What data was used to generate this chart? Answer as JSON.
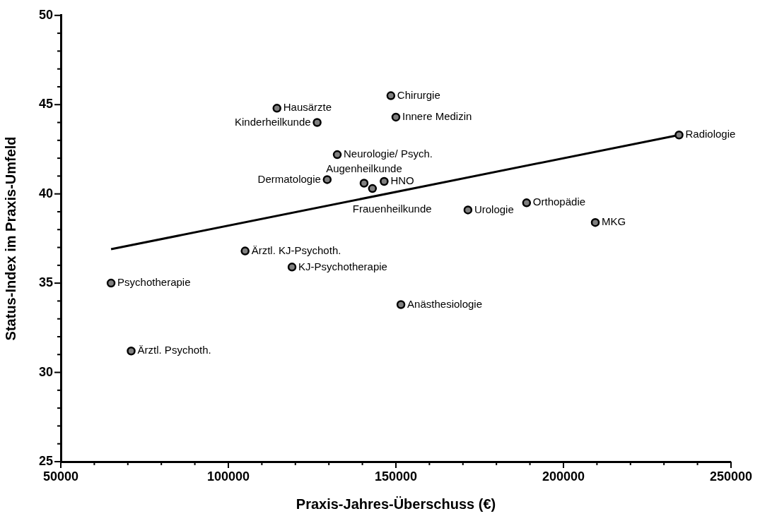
{
  "chart_data": {
    "type": "scatter",
    "xlabel": "Praxis-Jahres-Überschuss (€)",
    "ylabel": "Status-Index im Praxis-Umfeld",
    "marker": "circle",
    "grid": false,
    "xlim": [
      50000,
      250000
    ],
    "xticks": [
      50000,
      {
        "value": 60000,
        "label": null
      },
      {
        "value": 70000,
        "label": null
      },
      {
        "value": 80000,
        "label": null
      },
      {
        "value": 90000,
        "label": null
      },
      100000,
      {
        "value": 110000,
        "label": null
      },
      {
        "value": 120000,
        "label": null
      },
      {
        "value": 130000,
        "label": null
      },
      {
        "value": 140000,
        "label": null
      },
      150000,
      {
        "value": 160000,
        "label": null
      },
      {
        "value": 170000,
        "label": null
      },
      {
        "value": 180000,
        "label": null
      },
      {
        "value": 190000,
        "label": null
      },
      200000,
      {
        "value": 210000,
        "label": null
      },
      {
        "value": 220000,
        "label": null
      },
      {
        "value": 230000,
        "label": null
      },
      {
        "value": 240000,
        "label": null
      },
      250000
    ],
    "ylim": [
      25,
      50
    ],
    "yticks": [
      25,
      {
        "value": 26,
        "label": null
      },
      {
        "value": 27,
        "label": null
      },
      {
        "value": 28,
        "label": null
      },
      {
        "value": 29,
        "label": null
      },
      30,
      {
        "value": 31,
        "label": null
      },
      {
        "value": 32,
        "label": null
      },
      {
        "value": 33,
        "label": null
      },
      {
        "value": 34,
        "label": null
      },
      35,
      {
        "value": 36,
        "label": null
      },
      {
        "value": 37,
        "label": null
      },
      {
        "value": 38,
        "label": null
      },
      {
        "value": 39,
        "label": null
      },
      40,
      {
        "value": 41,
        "label": null
      },
      {
        "value": 42,
        "label": null
      },
      {
        "value": 43,
        "label": null
      },
      {
        "value": 44,
        "label": null
      },
      45,
      {
        "value": 46,
        "label": null
      },
      {
        "value": 47,
        "label": null
      },
      {
        "value": 48,
        "label": null
      },
      {
        "value": 49,
        "label": null
      },
      50
    ],
    "x": [
      114500,
      126500,
      148500,
      150000,
      132500,
      129500,
      140500,
      146500,
      143000,
      171500,
      189000,
      209500,
      234500,
      105000,
      119000,
      151500,
      65000,
      71000
    ],
    "series": [
      {
        "type": "scatter",
        "color": "#808080",
        "values": [
          44.8,
          44.0,
          45.5,
          44.3,
          42.2,
          40.8,
          40.6,
          40.7,
          40.3,
          39.1,
          39.5,
          38.4,
          43.3,
          36.8,
          35.9,
          33.8,
          35.0,
          31.2
        ]
      },
      {
        "type": "line",
        "marker": "none",
        "color": "#000000",
        "x": [
          65000,
          234500
        ],
        "values": [
          36.9,
          43.3
        ]
      }
    ],
    "annotations": [
      {
        "text": "Hausärzte",
        "x": 114500,
        "y": 44.8
      },
      {
        "text": "Kinderheilkunde",
        "x": 126500,
        "y": 44.0
      },
      {
        "text": "Chirurgie",
        "x": 148500,
        "y": 45.5
      },
      {
        "text": "Innere Medizin",
        "x": 150000,
        "y": 44.3
      },
      {
        "text": "Neurologie/ Psych.",
        "x": 132500,
        "y": 42.2
      },
      {
        "text": "Dermatologie",
        "x": 129500,
        "y": 40.8
      },
      {
        "text": "Augenheilkunde",
        "x": 140500,
        "y": 40.6
      },
      {
        "text": "HNO",
        "x": 146500,
        "y": 40.7
      },
      {
        "text": "Frauenheilkunde",
        "x": 143000,
        "y": 40.3
      },
      {
        "text": "Urologie",
        "x": 171500,
        "y": 39.1
      },
      {
        "text": "Orthopädie",
        "x": 189000,
        "y": 39.5
      },
      {
        "text": "MKG",
        "x": 209500,
        "y": 38.4
      },
      {
        "text": "Radiologie",
        "x": 234500,
        "y": 43.3
      },
      {
        "text": "Ärztl. KJ-Psychoth.",
        "x": 105000,
        "y": 36.8
      },
      {
        "text": "KJ-Psychotherapie",
        "x": 119000,
        "y": 35.9
      },
      {
        "text": "Anästhesiologie",
        "x": 151500,
        "y": 33.8
      },
      {
        "text": "Psychotherapie",
        "x": 65000,
        "y": 35.0
      },
      {
        "text": "Ärztl. Psychoth.",
        "x": 71000,
        "y": 31.2
      }
    ]
  }
}
